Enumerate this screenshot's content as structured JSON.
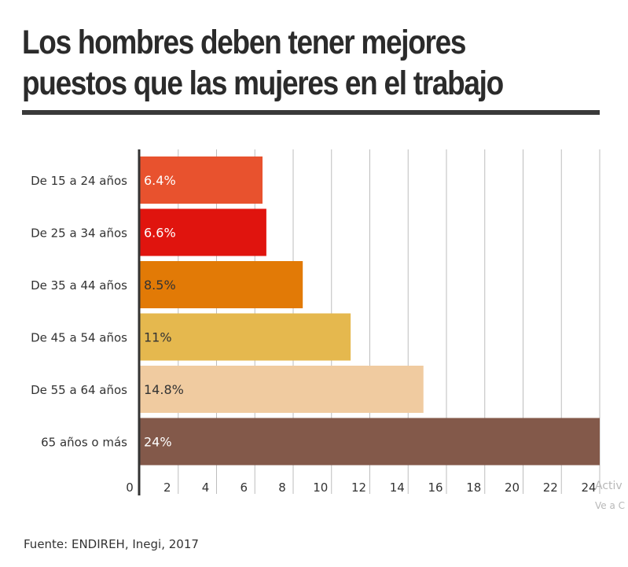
{
  "title_lines": [
    "Los hombres deben tener mejores",
    "puestos que las mujeres en el trabajo"
  ],
  "source": "Fuente: ENDIREH, Inegi, 2017",
  "watermark": {
    "line1": "Activ",
    "line2": "Ve a C"
  },
  "chart_data": {
    "type": "bar",
    "orientation": "horizontal",
    "categories": [
      "De 15 a 24 años",
      "De 25 a 34 años",
      "De 35 a 44 años",
      "De 45 a 54 años",
      "De 55 a 64 años",
      "65 años o más"
    ],
    "values": [
      6.4,
      6.6,
      8.5,
      11,
      14.8,
      24
    ],
    "value_labels": [
      "6.4%",
      "6.6%",
      "8.5%",
      "11%",
      "14.8%",
      "24%"
    ],
    "colors": [
      "#e8522e",
      "#e0140e",
      "#e27a06",
      "#e5b84e",
      "#f0cba0",
      "#83594a"
    ],
    "label_colors": [
      "#ffffff",
      "#ffffff",
      "#333333",
      "#333333",
      "#333333",
      "#ffffff"
    ],
    "xlim": [
      0,
      24
    ],
    "xticks": [
      0,
      2,
      4,
      6,
      8,
      10,
      12,
      14,
      16,
      18,
      20,
      22,
      24
    ],
    "grid": true,
    "grid_color": "#bdbdbd"
  }
}
